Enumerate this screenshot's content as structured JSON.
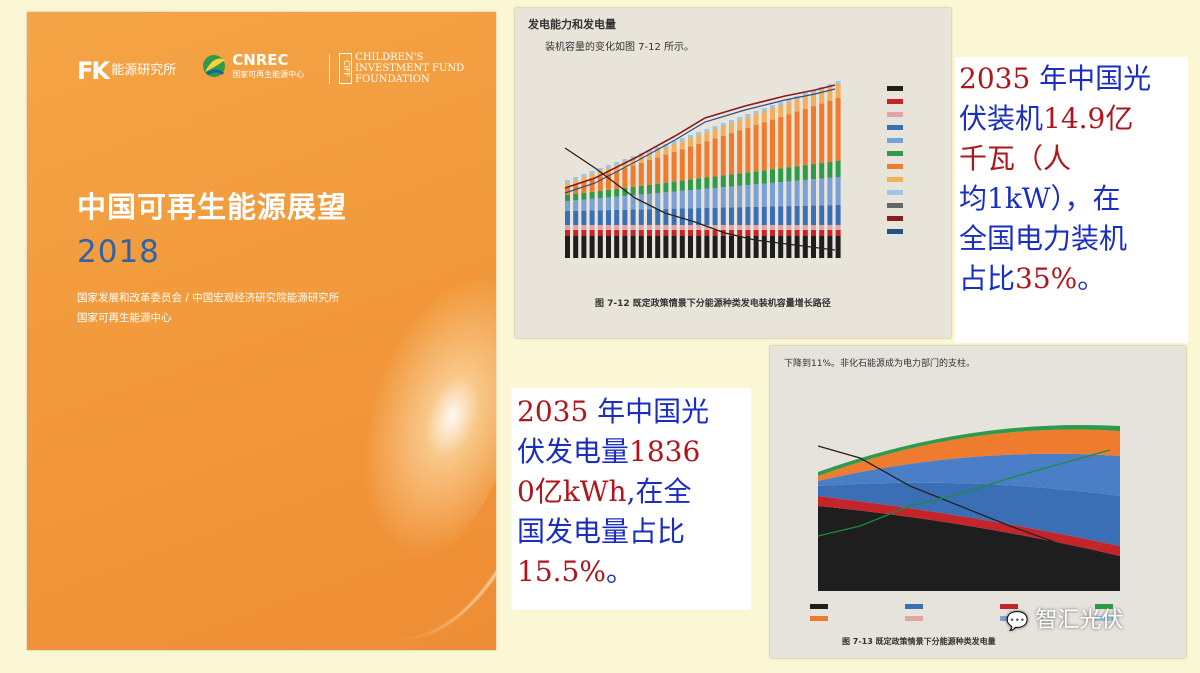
{
  "cover": {
    "logo1_name": "能源研究所",
    "logo2_name": "CNREC",
    "logo2_sub": "国家可再生能源中心",
    "logo3_badge": "CIFF",
    "logo3_lines": [
      "CHILDREN'S",
      "INVESTMENT FUND",
      "FOUNDATION"
    ],
    "title": "中国可再生能源展望",
    "year": "2018",
    "publisher_line1": "国家发展和改革委员会 / 中国宏观经济研究院能源研究所",
    "publisher_line2": "国家可再生能源中心"
  },
  "photo_top": {
    "heading": "发电能力和发电量",
    "subtext": "装机容量的变化如图 7-12 所示。",
    "caption": "图 7-12  既定政策情景下分能源种类发电装机容量增长路径"
  },
  "photo_bottom": {
    "text_line1": "下降到11%。非化石能源成为电力部门的支柱。",
    "caption": "图 7-13  既定政策情景下分能源种类发电量"
  },
  "callout_capacity": {
    "lines": [
      {
        "parts": [
          {
            "text": "2035",
            "color": "red"
          },
          {
            "text": " 年中国光",
            "color": "blue"
          }
        ]
      },
      {
        "parts": [
          {
            "text": "伏装机",
            "color": "blue"
          },
          {
            "text": "14.9亿",
            "color": "red"
          }
        ]
      },
      {
        "parts": [
          {
            "text": "千瓦（人",
            "color": "red"
          }
        ]
      },
      {
        "parts": [
          {
            "text": "均1kW），在",
            "color": "blue"
          }
        ]
      },
      {
        "parts": [
          {
            "text": "全国电力装机",
            "color": "blue"
          }
        ]
      },
      {
        "parts": [
          {
            "text": "占比",
            "color": "blue"
          },
          {
            "text": "35%",
            "color": "red"
          },
          {
            "text": "。",
            "color": "blue"
          }
        ]
      }
    ]
  },
  "callout_generation": {
    "lines": [
      {
        "parts": [
          {
            "text": "2035",
            "color": "red"
          },
          {
            "text": " 年中国光",
            "color": "blue"
          }
        ]
      },
      {
        "parts": [
          {
            "text": "伏发电量",
            "color": "blue"
          },
          {
            "text": "1836",
            "color": "red"
          }
        ]
      },
      {
        "parts": [
          {
            "text": "0亿kWh",
            "color": "red"
          },
          {
            "text": ",在全",
            "color": "blue"
          }
        ]
      },
      {
        "parts": [
          {
            "text": "国发电量占比",
            "color": "blue"
          }
        ]
      },
      {
        "parts": [
          {
            "text": "15.5%",
            "color": "red"
          },
          {
            "text": "。",
            "color": "blue"
          }
        ]
      }
    ]
  },
  "watermark": "智汇光伏",
  "colors": {
    "background": "#fbf7d4",
    "red": "#b0141c",
    "blue": "#1a2fc0",
    "cover_orange": "#f29a3c",
    "cover_year": "#2f64a8"
  }
}
